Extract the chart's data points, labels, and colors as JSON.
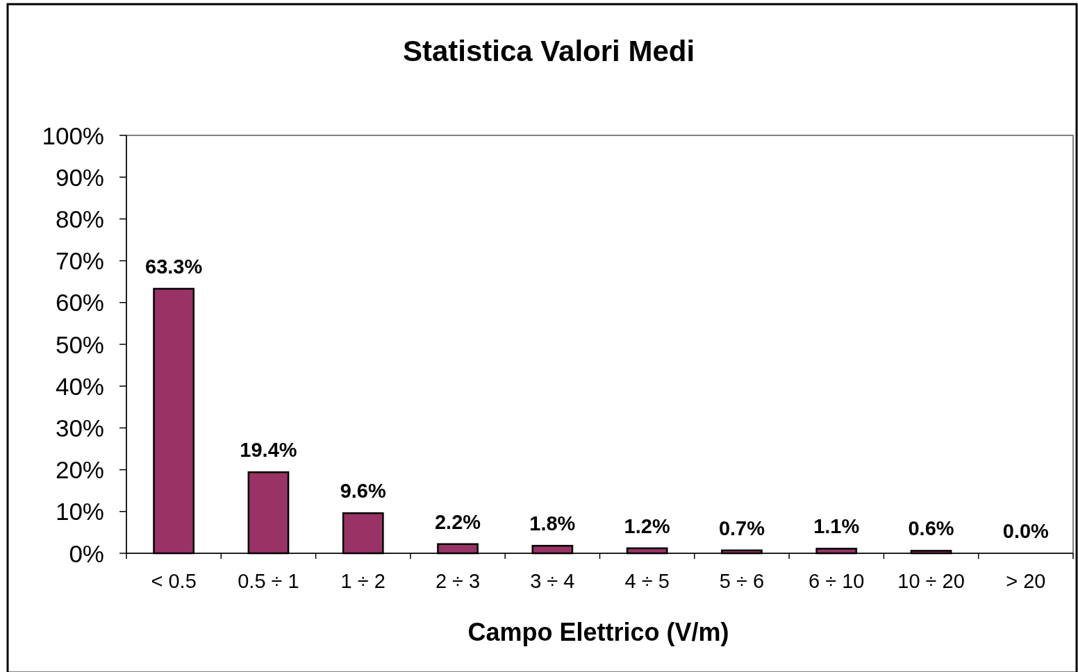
{
  "chart_data": {
    "type": "bar",
    "title": "Statistica Valori Medi",
    "xlabel": "Campo Elettrico (V/m)",
    "categories": [
      "< 0.5",
      "0.5 ÷ 1",
      "1 ÷ 2",
      "2 ÷ 3",
      "3 ÷ 4",
      "4 ÷ 5",
      "5 ÷ 6",
      "6 ÷ 10",
      "10 ÷ 20",
      "> 20"
    ],
    "values": [
      63.3,
      19.4,
      9.6,
      2.2,
      1.8,
      1.2,
      0.7,
      1.1,
      0.6,
      0.0
    ],
    "value_labels": [
      "63.3%",
      "19.4%",
      "9.6%",
      "2.2%",
      "1.8%",
      "1.2%",
      "0.7%",
      "1.1%",
      "0.6%",
      "0.0%"
    ],
    "color": "#993366",
    "ylim": [
      0,
      100
    ],
    "yticks": [
      {
        "value": 0,
        "label": "0%"
      },
      {
        "value": 10,
        "label": "10%"
      },
      {
        "value": 20,
        "label": "20%"
      },
      {
        "value": 30,
        "label": "30%"
      },
      {
        "value": 40,
        "label": "40%"
      },
      {
        "value": 50,
        "label": "50%"
      },
      {
        "value": 60,
        "label": "60%"
      },
      {
        "value": 70,
        "label": "70%"
      },
      {
        "value": 80,
        "label": "80%"
      },
      {
        "value": 90,
        "label": "90%"
      },
      {
        "value": 100,
        "label": "100%"
      }
    ],
    "grid": false
  }
}
